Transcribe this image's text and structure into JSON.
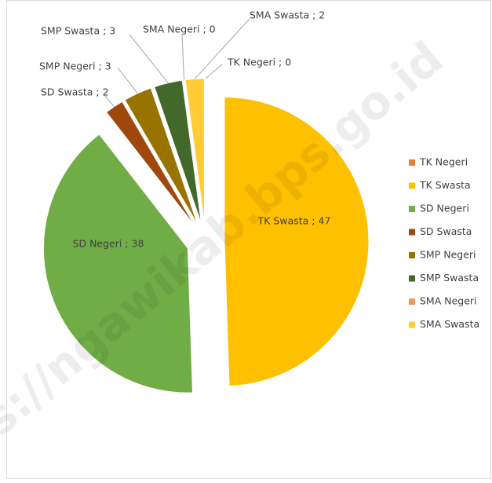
{
  "chart_data": {
    "type": "pie",
    "categories": [
      "TK Negeri",
      "TK Swasta",
      "SD Negeri",
      "SD Swasta",
      "SMP Negeri",
      "SMP Swasta",
      "SMA Negeri",
      "SMA Swasta"
    ],
    "values": [
      0,
      47,
      38,
      2,
      3,
      3,
      0,
      2
    ],
    "value_labels": [
      "TK Negeri ; 0",
      "TK Swasta ; 47",
      "SD Negeri ; 38",
      "SD Swasta ; 2",
      "SMP Negeri ; 3",
      "SMP Swasta ; 3",
      "SMA Negeri ; 0",
      "SMA Swasta ; 2"
    ],
    "colors": [
      "#ed7d31",
      "#ffc000",
      "#70ad47",
      "#9e480e",
      "#997300",
      "#43682b",
      "#f1975a",
      "#ffcd33"
    ],
    "legend": "right",
    "watermark": "s://ngawikab.bps.go.id"
  }
}
